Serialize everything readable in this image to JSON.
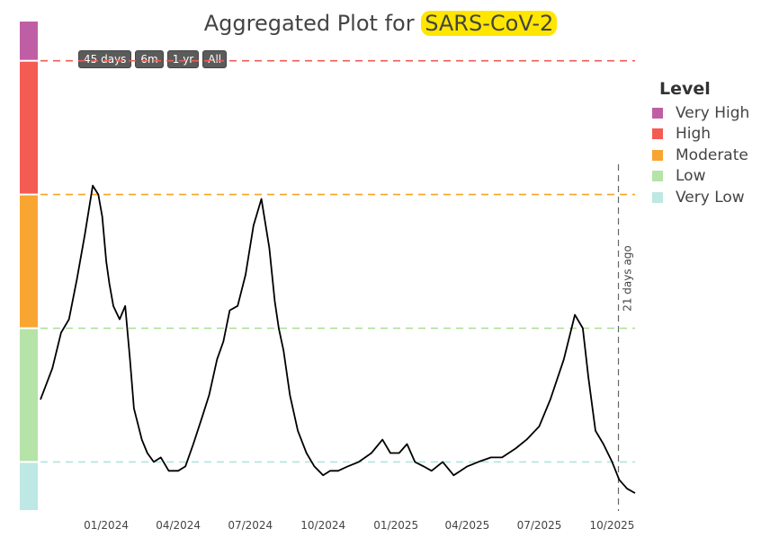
{
  "title": {
    "prefix": "Aggregated Plot for ",
    "pathogen": "SARS-CoV-2"
  },
  "range_buttons": [
    "45 days",
    "6m",
    "1 yr",
    "All"
  ],
  "legend": {
    "title": "Level",
    "items": [
      {
        "label": "Very High",
        "color": "#c05ea5"
      },
      {
        "label": "High",
        "color": "#f45b52"
      },
      {
        "label": "Moderate",
        "color": "#f9a531"
      },
      {
        "label": "Low",
        "color": "#b6e3a7"
      },
      {
        "label": "Very Low",
        "color": "#bde8e4"
      }
    ]
  },
  "chart_data": {
    "type": "line",
    "title": "Aggregated Plot for SARS-CoV-2",
    "xlabel": "",
    "ylabel": "",
    "x_tick_labels": [
      "01/2024",
      "04/2024",
      "07/2024",
      "10/2024",
      "01/2025",
      "04/2025",
      "07/2025",
      "10/2025"
    ],
    "x_range": [
      "2023-10-10",
      "2025-10-30"
    ],
    "y_range": [
      0,
      11
    ],
    "grid": false,
    "legend_position": "right",
    "level_bands": [
      {
        "label": "Very Low",
        "from": 0,
        "to": 1.1,
        "color": "#bde8e4"
      },
      {
        "label": "Low",
        "from": 1.1,
        "to": 4.1,
        "color": "#b6e3a7"
      },
      {
        "label": "Moderate",
        "from": 4.1,
        "to": 7.1,
        "color": "#f9a531"
      },
      {
        "label": "High",
        "from": 7.1,
        "to": 10.1,
        "color": "#f45b52"
      },
      {
        "label": "Very High",
        "from": 10.1,
        "to": 11,
        "color": "#c05ea5"
      }
    ],
    "thresholds": [
      {
        "value": 1.1,
        "color": "#b2e4e0"
      },
      {
        "value": 4.1,
        "color": "#a9dd97"
      },
      {
        "value": 7.1,
        "color": "#f5a623"
      },
      {
        "value": 10.1,
        "color": "#f05b52"
      }
    ],
    "annotation": {
      "text": "21 days ago",
      "x": "2025-10-09"
    },
    "series": [
      {
        "color": "#000000",
        "x": [
          "2023-10-10",
          "2023-10-25",
          "2023-11-05",
          "2023-11-15",
          "2023-11-25",
          "2023-12-05",
          "2023-12-15",
          "2023-12-22",
          "2023-12-27",
          "2024-01-01",
          "2024-01-05",
          "2024-01-10",
          "2024-01-18",
          "2024-01-25",
          "2024-01-31",
          "2024-02-05",
          "2024-02-15",
          "2024-02-22",
          "2024-03-01",
          "2024-03-10",
          "2024-03-20",
          "2024-04-01",
          "2024-04-10",
          "2024-04-20",
          "2024-05-01",
          "2024-05-10",
          "2024-05-20",
          "2024-05-28",
          "2024-06-05",
          "2024-06-15",
          "2024-06-25",
          "2024-07-05",
          "2024-07-15",
          "2024-07-25",
          "2024-08-01",
          "2024-08-06",
          "2024-08-12",
          "2024-08-20",
          "2024-08-30",
          "2024-09-10",
          "2024-09-20",
          "2024-10-01",
          "2024-10-10",
          "2024-10-20",
          "2024-11-01",
          "2024-11-15",
          "2024-12-01",
          "2024-12-15",
          "2024-12-25",
          "2025-01-05",
          "2025-01-15",
          "2025-01-25",
          "2025-02-05",
          "2025-02-15",
          "2025-03-01",
          "2025-03-15",
          "2025-04-01",
          "2025-04-15",
          "2025-05-01",
          "2025-05-15",
          "2025-06-01",
          "2025-06-15",
          "2025-07-01",
          "2025-07-15",
          "2025-08-01",
          "2025-08-15",
          "2025-08-25",
          "2025-09-01",
          "2025-09-10",
          "2025-09-20",
          "2025-10-01",
          "2025-10-10",
          "2025-10-20",
          "2025-10-30"
        ],
        "y": [
          2.5,
          3.2,
          4.0,
          4.3,
          5.2,
          6.2,
          7.3,
          7.1,
          6.6,
          5.6,
          5.1,
          4.6,
          4.3,
          4.6,
          3.4,
          2.3,
          1.6,
          1.3,
          1.1,
          1.2,
          0.9,
          0.9,
          1.0,
          1.5,
          2.1,
          2.6,
          3.4,
          3.8,
          4.5,
          4.6,
          5.3,
          6.4,
          7.0,
          5.9,
          4.7,
          4.1,
          3.6,
          2.6,
          1.8,
          1.3,
          1.0,
          0.8,
          0.9,
          0.9,
          1.0,
          1.1,
          1.3,
          1.6,
          1.3,
          1.3,
          1.5,
          1.1,
          1.0,
          0.9,
          1.1,
          0.8,
          1.0,
          1.1,
          1.2,
          1.2,
          1.4,
          1.6,
          1.9,
          2.5,
          3.4,
          4.4,
          4.1,
          3.0,
          1.8,
          1.5,
          1.1,
          0.7,
          0.5,
          0.4
        ]
      }
    ]
  }
}
